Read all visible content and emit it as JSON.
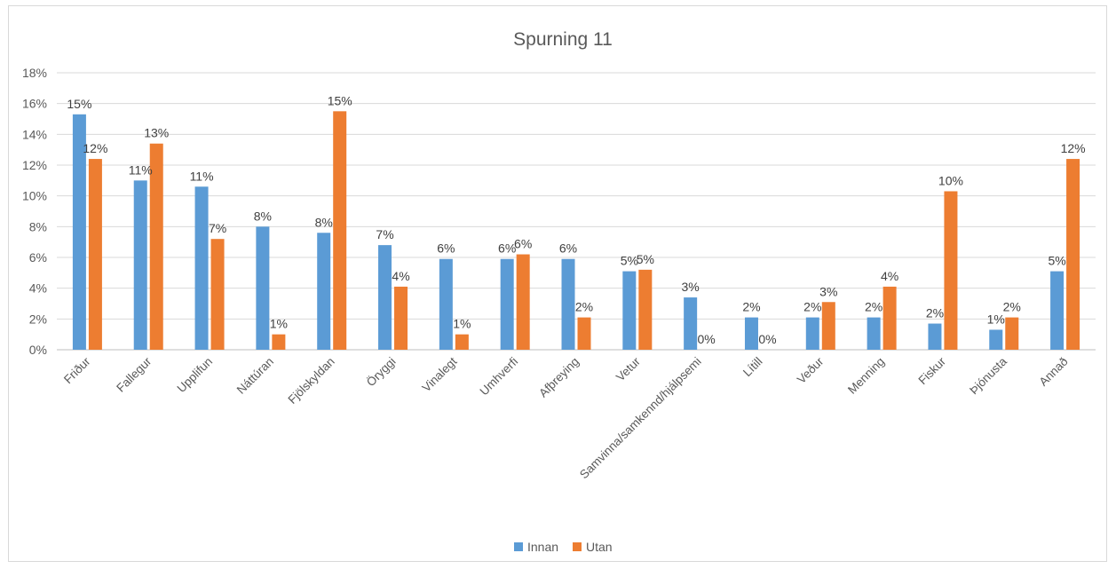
{
  "chart_data": {
    "type": "bar",
    "title": "Spurning 11",
    "xlabel": "",
    "ylabel": "",
    "ylim": [
      0,
      0.18
    ],
    "yticks": [
      "0%",
      "2%",
      "4%",
      "6%",
      "8%",
      "10%",
      "12%",
      "14%",
      "16%",
      "18%"
    ],
    "grid": true,
    "legend_position": "bottom",
    "categories": [
      "Friður",
      "Fallegur",
      "Upplifun",
      "Náttúran",
      "Fjölskyldan",
      "Öryggi",
      "Vinalegt",
      "Umhverfi",
      "Afþreying",
      "Vetur",
      "Samvinna/samkennd/hjálpsemi",
      "Lítill",
      "Veður",
      "Menning",
      "Fiskur",
      "Þjónusta",
      "Annað"
    ],
    "series": [
      {
        "name": "Innan",
        "color": "#5b9bd5",
        "values": [
          0.153,
          0.11,
          0.106,
          0.08,
          0.076,
          0.068,
          0.059,
          0.059,
          0.059,
          0.051,
          0.034,
          0.021,
          0.021,
          0.021,
          0.017,
          0.013,
          0.051
        ],
        "labels": [
          "15%",
          "11%",
          "11%",
          "8%",
          "8%",
          "7%",
          "6%",
          "6%",
          "6%",
          "5%",
          "3%",
          "2%",
          "2%",
          "2%",
          "2%",
          "1%",
          "5%"
        ]
      },
      {
        "name": "Utan",
        "color": "#ed7d31",
        "values": [
          0.124,
          0.134,
          0.072,
          0.01,
          0.155,
          0.041,
          0.01,
          0.062,
          0.021,
          0.052,
          0.0,
          0.0,
          0.031,
          0.041,
          0.103,
          0.021,
          0.124
        ],
        "labels": [
          "12%",
          "13%",
          "7%",
          "1%",
          "15%",
          "4%",
          "1%",
          "6%",
          "2%",
          "5%",
          "0%",
          "0%",
          "3%",
          "4%",
          "10%",
          "2%",
          "12%"
        ]
      }
    ]
  }
}
